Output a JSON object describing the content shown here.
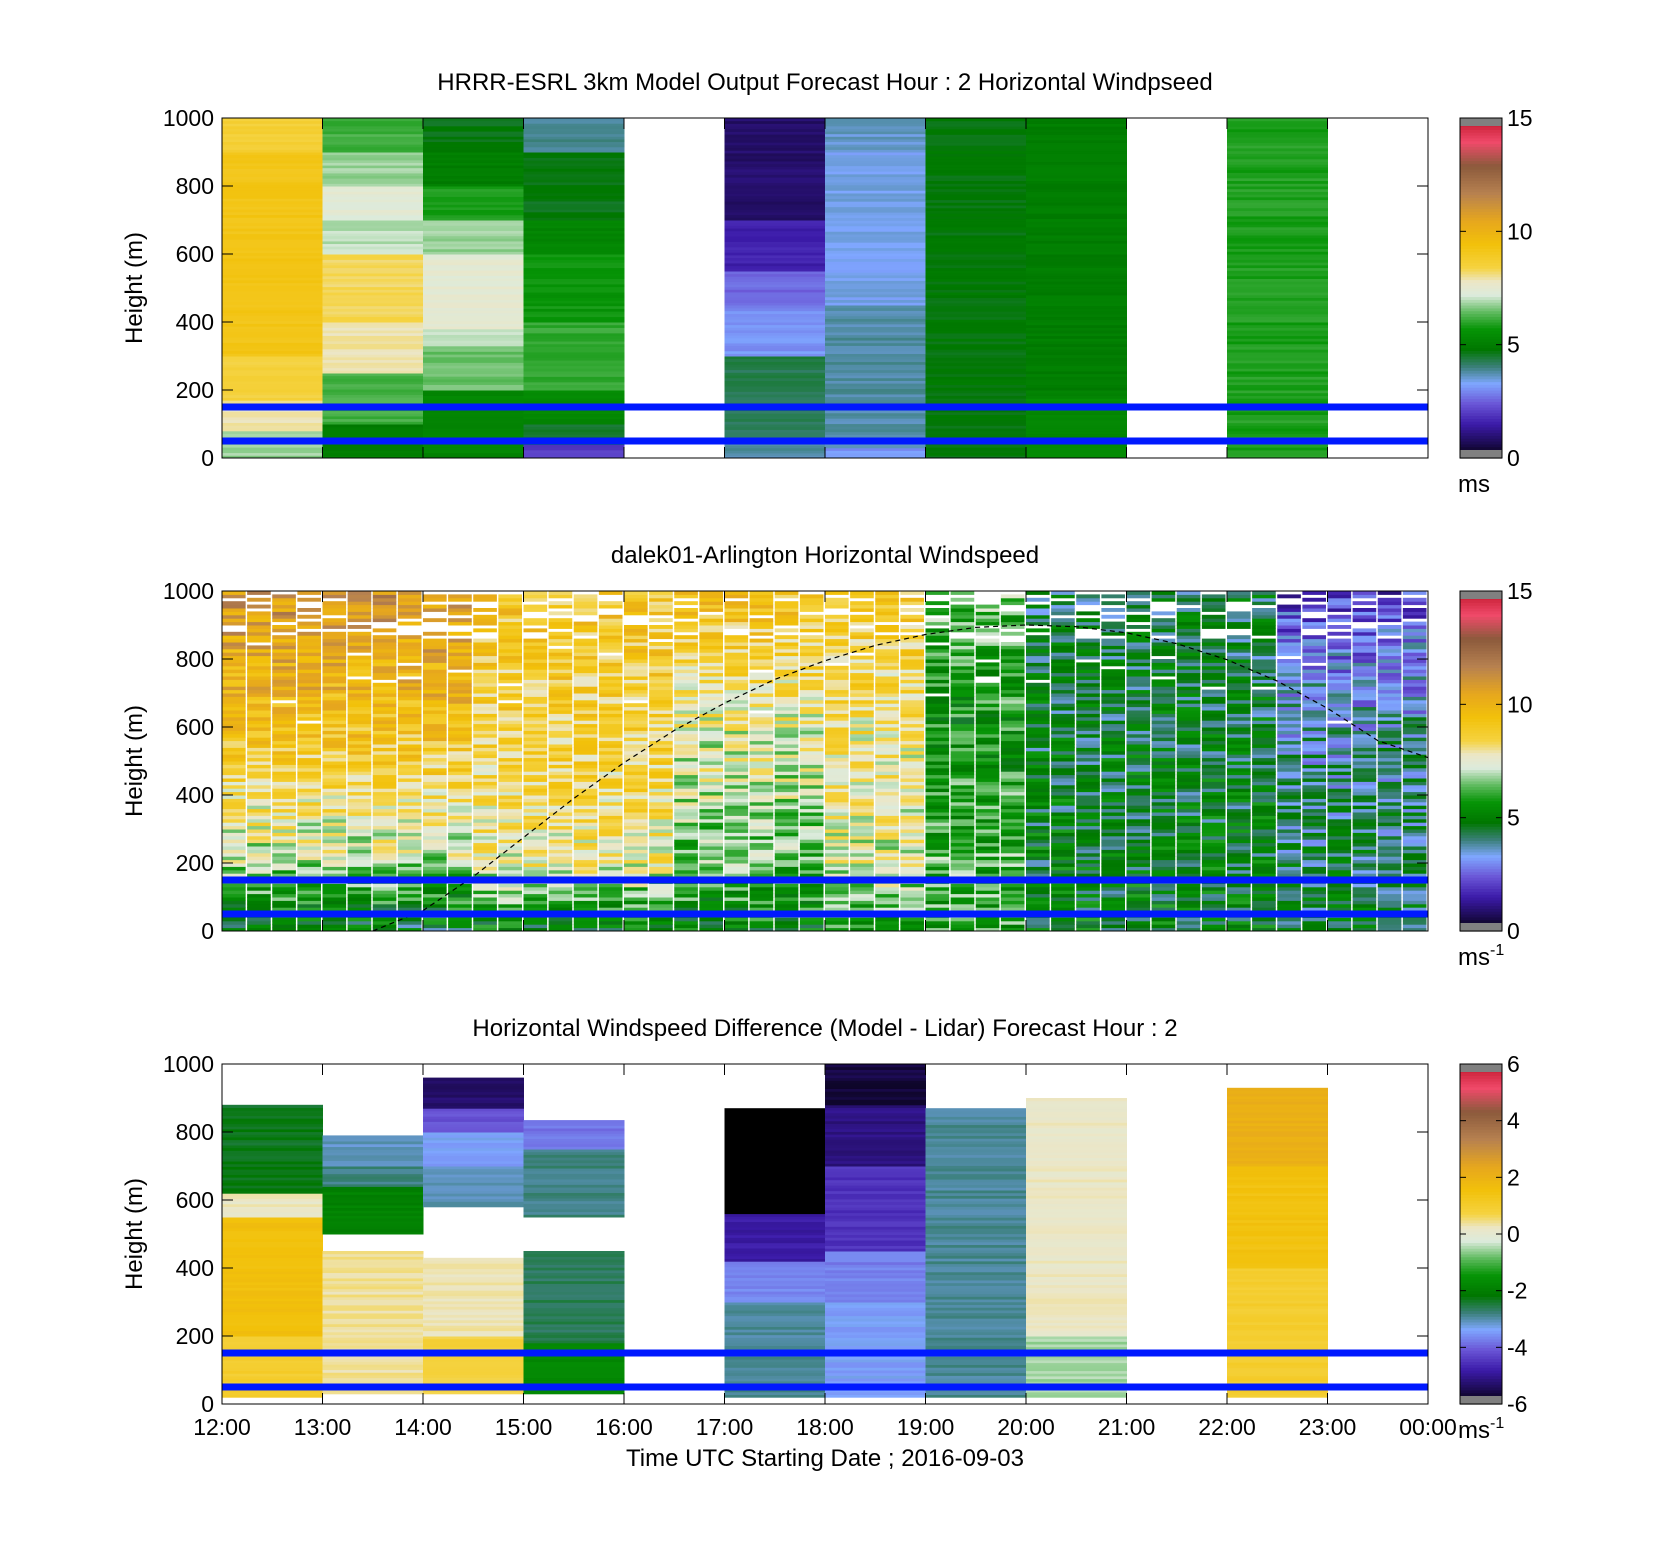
{
  "chart_data": [
    {
      "type": "heatmap",
      "title": "HRRR-ESRL 3km Model Output   Forecast Hour : 2 Horizontal Windpseed",
      "ylabel": "Height (m)",
      "xlabel": "",
      "ylim": [
        0,
        1000
      ],
      "yticks": [
        "0",
        "200",
        "400",
        "600",
        "800",
        "1000"
      ],
      "x_range_hours": [
        12,
        24
      ],
      "colorbar": {
        "range": [
          0,
          15
        ],
        "ticks": [
          "0",
          "5",
          "10",
          "15"
        ],
        "unit": "ms",
        "unit_sup": ""
      },
      "reference_lines_m": [
        150,
        50
      ],
      "reference_line_color": "#0019ff",
      "columns": [
        {
          "start_hour": 12,
          "bins": [
            [
              0,
              80,
              6.8
            ],
            [
              80,
              170,
              7.9
            ],
            [
              170,
              300,
              8.5
            ],
            [
              300,
              900,
              9.2
            ],
            [
              900,
              1000,
              8.6
            ]
          ]
        },
        {
          "start_hour": 13,
          "bins": [
            [
              0,
              100,
              5.0
            ],
            [
              100,
              250,
              6.2
            ],
            [
              250,
              400,
              7.9
            ],
            [
              400,
              600,
              8.3
            ],
            [
              600,
              700,
              7.0
            ],
            [
              700,
              800,
              7.4
            ],
            [
              800,
              900,
              6.8
            ],
            [
              900,
              1000,
              6.2
            ]
          ]
        },
        {
          "start_hour": 14,
          "bins": [
            [
              0,
              200,
              5.2
            ],
            [
              200,
              330,
              6.5
            ],
            [
              330,
              380,
              7.0
            ],
            [
              380,
              600,
              7.5
            ],
            [
              600,
              700,
              6.8
            ],
            [
              700,
              800,
              5.9
            ],
            [
              800,
              900,
              5.0
            ],
            [
              900,
              1000,
              4.7
            ]
          ]
        },
        {
          "start_hour": 15,
          "bins": [
            [
              0,
              40,
              2.0
            ],
            [
              40,
              100,
              4.6
            ],
            [
              100,
              200,
              5.3
            ],
            [
              200,
              400,
              6.1
            ],
            [
              400,
              600,
              5.7
            ],
            [
              600,
              700,
              5.2
            ],
            [
              700,
              900,
              4.7
            ],
            [
              900,
              1000,
              3.9
            ]
          ]
        },
        {
          "start_hour": 17,
          "bins": [
            [
              0,
              60,
              3.8
            ],
            [
              60,
              300,
              4.3
            ],
            [
              300,
              400,
              3.1
            ],
            [
              400,
              450,
              3.0
            ],
            [
              450,
              550,
              2.6
            ],
            [
              550,
              700,
              1.6
            ],
            [
              700,
              1000,
              0.9
            ]
          ]
        },
        {
          "start_hour": 18,
          "bins": [
            [
              0,
              30,
              3.1
            ],
            [
              30,
              450,
              3.8
            ],
            [
              450,
              900,
              3.4
            ],
            [
              900,
              1000,
              3.6
            ]
          ]
        },
        {
          "start_hour": 19,
          "bins": [
            [
              0,
              1000,
              4.8
            ]
          ]
        },
        {
          "start_hour": 20,
          "bins": [
            [
              0,
              200,
              5.3
            ],
            [
              200,
              1000,
              5.0
            ]
          ]
        },
        {
          "start_hour": 22,
          "bins": [
            [
              0,
              1000,
              5.9
            ]
          ]
        }
      ]
    },
    {
      "type": "heatmap",
      "title": "dalek01-Arlington  Horizontal Windspeed",
      "ylabel": "Height (m)",
      "xlabel": "",
      "ylim": [
        0,
        1000
      ],
      "yticks": [
        "0",
        "200",
        "400",
        "600",
        "800",
        "1000"
      ],
      "x_range_hours": [
        12,
        24
      ],
      "colorbar": {
        "range": [
          0,
          15
        ],
        "ticks": [
          "0",
          "5",
          "10",
          "15"
        ],
        "unit": "ms",
        "unit_sup": "-1"
      },
      "reference_lines_m": [
        150,
        50
      ],
      "reference_line_color": "#0019ff",
      "boundary_layer_curve": {
        "x_hours": [
          13.5,
          14,
          14.5,
          15,
          15.5,
          16,
          16.5,
          17,
          17.5,
          18,
          18.5,
          19,
          19.5,
          20,
          20.5,
          21,
          21.5,
          22,
          22.5,
          23,
          23.5,
          24
        ],
        "height_m": [
          0,
          60,
          160,
          275,
          390,
          495,
          590,
          670,
          740,
          795,
          840,
          872,
          893,
          900,
          895,
          877,
          845,
          798,
          735,
          655,
          560,
          510
        ]
      },
      "profile_profiles": [
        {
          "hours": [
            12.0,
            14.5
          ],
          "surface": 4.5,
          "mid": 7.0,
          "upper": 9.4,
          "top": 11.2
        },
        {
          "hours": [
            14.5,
            16.5
          ],
          "surface": 5.0,
          "mid": 7.8,
          "upper": 8.6,
          "top": 9.2
        },
        {
          "hours": [
            16.5,
            18.0
          ],
          "surface": 5.2,
          "mid": 6.4,
          "upper": 7.6,
          "top": 9.4
        },
        {
          "hours": [
            18.0,
            19.0
          ],
          "surface": 6.0,
          "mid": 7.4,
          "upper": 8.0,
          "top": 9.0
        },
        {
          "hours": [
            19.0,
            20.0
          ],
          "surface": 5.8,
          "mid": 6.2,
          "upper": 5.6,
          "top": 6.6
        },
        {
          "hours": [
            20.0,
            22.5
          ],
          "surface": 4.9,
          "mid": 4.8,
          "upper": 4.6,
          "top": 4.4
        },
        {
          "hours": [
            22.5,
            24.0
          ],
          "surface": 4.7,
          "mid": 4.3,
          "upper": 3.6,
          "top": 2.2
        }
      ]
    },
    {
      "type": "heatmap",
      "title": "Horizontal Windspeed Difference (Model - Lidar) Forecast Hour : 2",
      "ylabel": "Height (m)",
      "xlabel": "Time UTC  Starting Date ; 2016-09-03",
      "ylim": [
        0,
        1000
      ],
      "yticks": [
        "0",
        "200",
        "400",
        "600",
        "800",
        "1000"
      ],
      "xticks": [
        "12:00",
        "13:00",
        "14:00",
        "15:00",
        "16:00",
        "17:00",
        "18:00",
        "19:00",
        "20:00",
        "21:00",
        "22:00",
        "23:00",
        "00:00"
      ],
      "x_range_hours": [
        12,
        24
      ],
      "colorbar": {
        "range": [
          -6,
          6
        ],
        "ticks": [
          "-6",
          "-4",
          "-2",
          "0",
          "2",
          "4",
          "6"
        ],
        "unit": "ms",
        "unit_sup": "-1"
      },
      "reference_lines_m": [
        150,
        50
      ],
      "reference_line_color": "#0019ff",
      "columns": [
        {
          "start_hour": 12,
          "bins": [
            [
              20,
              200,
              1.0
            ],
            [
              200,
              550,
              1.6
            ],
            [
              550,
              620,
              0.2
            ],
            [
              620,
              880,
              -2.3
            ]
          ]
        },
        {
          "start_hour": 13,
          "bins": [
            [
              30,
              450,
              0.4
            ],
            [
              500,
              640,
              -1.9
            ],
            [
              640,
              700,
              -2.8
            ],
            [
              700,
              790,
              -3.1
            ]
          ]
        },
        {
          "start_hour": 14,
          "bins": [
            [
              30,
              200,
              0.8
            ],
            [
              200,
              430,
              0.3
            ],
            [
              580,
              700,
              -3.0
            ],
            [
              700,
              800,
              -3.4
            ],
            [
              800,
              870,
              -4.1
            ],
            [
              870,
              960,
              -5.3
            ]
          ]
        },
        {
          "start_hour": 15,
          "bins": [
            [
              30,
              180,
              -1.7
            ],
            [
              180,
              450,
              -2.6
            ],
            [
              550,
              750,
              -2.8
            ],
            [
              750,
              835,
              -3.8
            ]
          ]
        },
        {
          "start_hour": 17,
          "bins": [
            [
              20,
              300,
              -2.9
            ],
            [
              300,
              420,
              -3.6
            ],
            [
              420,
              560,
              -4.8
            ],
            [
              560,
              870,
              -7.0
            ]
          ]
        },
        {
          "start_hour": 18,
          "bins": [
            [
              20,
              300,
              -3.4
            ],
            [
              300,
              450,
              -3.7
            ],
            [
              450,
              700,
              -4.5
            ],
            [
              700,
              880,
              -5.1
            ],
            [
              880,
              1000,
              -5.6
            ]
          ]
        },
        {
          "start_hour": 19,
          "bins": [
            [
              20,
              870,
              -2.9
            ]
          ]
        },
        {
          "start_hour": 20,
          "bins": [
            [
              20,
              200,
              -0.5
            ],
            [
              200,
              900,
              0.2
            ]
          ]
        },
        {
          "start_hour": 22,
          "bins": [
            [
              20,
              400,
              1.0
            ],
            [
              400,
              700,
              1.5
            ],
            [
              700,
              930,
              2.1
            ]
          ]
        }
      ]
    }
  ]
}
